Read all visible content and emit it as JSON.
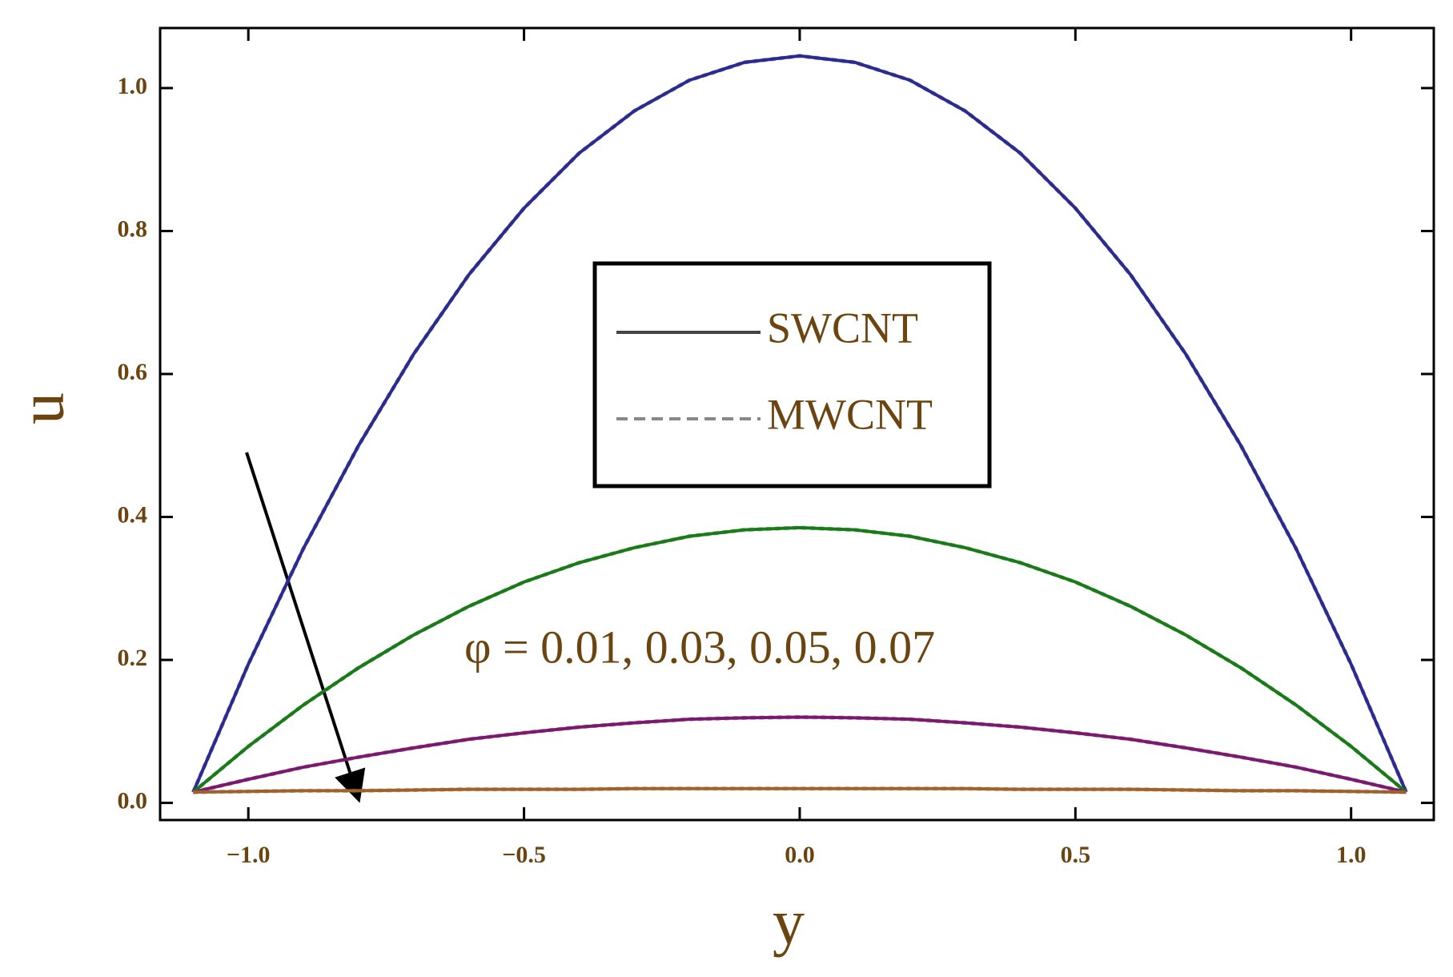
{
  "chart_data": {
    "type": "line",
    "x_label": "y",
    "y_label": "u",
    "annotation": "φ = 0.01, 0.03, 0.05, 0.07",
    "legend": [
      {
        "name": "SWCNT",
        "dash": "solid"
      },
      {
        "name": "MWCNT",
        "dash": "dashed"
      }
    ],
    "x": [
      -1.1,
      -1.0,
      -0.9,
      -0.8,
      -0.7,
      -0.6,
      -0.5,
      -0.4,
      -0.3,
      -0.2,
      -0.1,
      0,
      0.1,
      0.2,
      0.3,
      0.4,
      0.5,
      0.6,
      0.7,
      0.8,
      0.9,
      1.0,
      1.1
    ],
    "series": [
      {
        "color": "#2b2b8f",
        "values": [
          0.015,
          0.194,
          0.356,
          0.5,
          0.628,
          0.739,
          0.832,
          0.909,
          0.968,
          1.011,
          1.036,
          1.045,
          1.036,
          1.011,
          0.968,
          0.909,
          0.832,
          0.739,
          0.628,
          0.5,
          0.356,
          0.194,
          0.015
        ]
      },
      {
        "color": "#1a7a1a",
        "values": [
          0.015,
          0.079,
          0.137,
          0.189,
          0.235,
          0.275,
          0.309,
          0.336,
          0.357,
          0.373,
          0.382,
          0.385,
          0.382,
          0.373,
          0.357,
          0.336,
          0.309,
          0.275,
          0.235,
          0.189,
          0.137,
          0.079,
          0.015
        ]
      },
      {
        "color": "#7a1a6e",
        "values": [
          0.015,
          0.033,
          0.05,
          0.064,
          0.077,
          0.089,
          0.098,
          0.106,
          0.112,
          0.117,
          0.119,
          0.12,
          0.119,
          0.117,
          0.112,
          0.106,
          0.098,
          0.089,
          0.077,
          0.064,
          0.05,
          0.033,
          0.015
        ]
      },
      {
        "color": "#a0622d",
        "values": [
          0.015,
          0.016,
          0.017,
          0.017,
          0.018,
          0.019,
          0.019,
          0.019,
          0.02,
          0.02,
          0.02,
          0.02,
          0.02,
          0.02,
          0.02,
          0.019,
          0.019,
          0.019,
          0.018,
          0.017,
          0.017,
          0.016,
          0.015
        ]
      }
    ],
    "xlim": [
      -1.16,
      1.15
    ],
    "ylim": [
      -0.024,
      1.084
    ],
    "xticks": [
      {
        "value": -1.0,
        "label": "−1.0"
      },
      {
        "value": -0.5,
        "label": "−0.5"
      },
      {
        "value": 0,
        "label": "0.0"
      },
      0.5,
      {
        "value": 1.0,
        "label": "1.0"
      }
    ],
    "yticks": [
      {
        "value": 0,
        "label": "0.0"
      },
      0.2,
      0.4,
      0.6,
      0.8,
      {
        "value": 1.0,
        "label": "1.0"
      }
    ],
    "grid": false
  }
}
